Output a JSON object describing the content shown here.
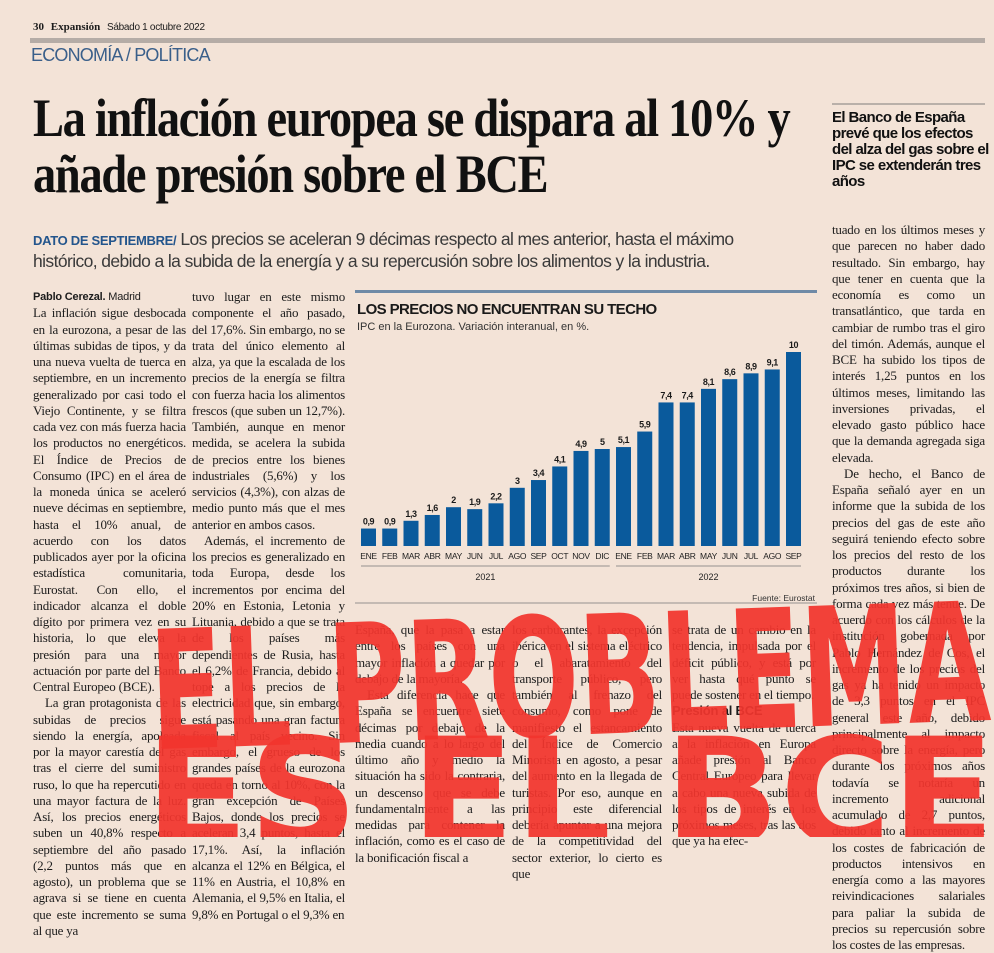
{
  "folio": {
    "page": "30",
    "brand": "Expansión",
    "date": "Sábado 1 octubre 2022"
  },
  "section": "ECONOMÍA / POLÍTICA",
  "headline": "La inflación europea se dispara al 10% y añade presión sobre el BCE",
  "side_summary": "El Banco de España prevé que los efectos del alza del gas sobre el IPC se extenderán tres años",
  "deck": {
    "label": "DATO DE SEPTIEMBRE/",
    "text": "Los precios se aceleran 9 décimas respecto al mes anterior, hasta el máximo histórico, debido a la subida de la energía y a su repercusión sobre los alimentos y la industria."
  },
  "byline": {
    "author": "Pablo Cerezal.",
    "place": "Madrid"
  },
  "columns": {
    "c1p1": "La inflación sigue desbocada en la eurozona, a pesar de las últimas subidas de tipos, y da una nueva vuelta de tuerca en septiembre, en un incremento generalizado por casi todo el Viejo Continente, y se filtra cada vez con más fuerza hacia los productos no energéticos. El Índice de Precios de Consumo (IPC) en el área de la moneda única se aceleró nueve décimas en septiembre, hasta el 10% anual, de acuerdo con los datos publicados ayer por la oficina estadística comunitaria, Eurostat. Con ello, el indicador alcanza el doble dígito por primera vez en su historia, lo que eleva la presión para una mayor actuación por parte del Banco Central Europeo (BCE).",
    "c1p2": "La gran protagonista de las subidas de precios sigue siendo la energía, apoleada por la mayor carestía del gas tras el cierre del suministro ruso, lo que ha repercutido en una mayor factura de la luz. Así, los precios energéticos suben un 40,8% respecto a septiembre del año pasado (2,2 puntos más que en agosto), un problema que se agrava si se tiene en cuenta que este incremento se suma al que ya",
    "c2p1": "tuvo lugar en este mismo componente el año pasado, del 17,6%. Sin embargo, no se trata del único elemento al alza, ya que la escalada de los precios de la energía se filtra con fuerza hacia los alimentos frescos (que suben un 12,7%). También, aunque en menor medida, se acelera la subida de precios entre los bienes industriales (5,6%) y los servicios (4,3%), con alzas de medio punto más que el mes anterior en ambos casos.",
    "c2p2": "Además, el incremento de los precios es generalizado en toda Europa, desde los incrementos por encima del 20% en Estonia, Letonia y Lituania, debido a que se trata de los países más dependientes de Rusia, hasta el 6,2% de Francia, debido al tope a los precios de la electricidad que, sin embargo, está pasando una gran factura fiscal al país vecino. Sin embargo, el grueso de los grandes países de la eurozona queda en torno al 10%, con la gran excepción de Países Bajos, donde los precios se aceleran 3,4 puntos, hasta el 17,1%. Así, la inflación alcanza el 12% en Bélgica, el 11% en Austria, el 10,8% en Alemania, el 9,5% en Italia, el 9,8% en Portugal o el 9,3% en",
    "c3p1": "España, que la pasa a estar entre los países con una mayor inflación a quedar por debajo de la mayoría.",
    "c3p2": "Esta diferencia hace que España se encuentre siete décimas por debajo de la media cuando a lo largo del último año y medio la situación ha sido la contraria, un descenso que se debe fundamentalmente a las medidas para contener la inflación, como es el caso de la bonificación fiscal a",
    "c4p1": "los carburantes, la excepción ibérica en el sistema eléctrico o el abaratamiento del transporte público, pero también al frenazo del consumo, como pone de manifiesto el estancamiento del Índice de Comercio Minorista en agosto, a pesar del aumento en la llegada de turistas. Por eso, aunque en principio este diferencial debería apuntar a una mejora de la competitividad del sector exterior, lo cierto es que",
    "c5p1": "se trata de un cambio en la tendencia, impulsada por el déficit público, y está por ver hasta qué punto se puede sostener en el tiempo.",
    "c5sub": "Presión al BCE",
    "c5p2": "Esta nueva vuelta de tuerca a la inflación en Europa añade presión al Banco Central Europeo para llevar a cabo una nueva subida de los tipos de interés en los próximos meses, tras las dos que ya ha efec-",
    "c6p1": "tuado en los últimos meses y que parecen no haber dado resultado. Sin embargo, hay que tener en cuenta que la economía es como un transatlántico, que tarda en cambiar de rumbo tras el giro del timón. Además, aunque el BCE ha subido los tipos de interés 1,25 puntos en los últimos meses, limitando las inversiones privadas, el elevado gasto público hace que la demanda agregada siga elevada.",
    "c6p2": "De hecho, el Banco de España señaló ayer en un informe que la subida de los precios del gas de este año seguirá teniendo efecto sobre los precios del resto de los productos durante los próximos tres años, si bien de forma cada vez más tenue. De acuerdo con los cálculos de la institución gobernada por Pablo Hernández de Cos, el incremento de los precios del gas ya ha tenido un impacto de 3,3 puntos en el IPC general este año, debido principalmente al impacto directo sobre la energía, pero durante los próximos años todavía se notaría un incremento adicional acumulado de 2,7 puntos, debido tanto al incremento de los costes de fabricación de productos intensivos en energía como a las mayores reivindicaciones salariales para paliar la subida de precios su repercusión sobre los costes de las empresas."
  },
  "graffiti": {
    "line1": "EL PROBLEMA",
    "line2": "ES EL BCE",
    "color": "#f2352e"
  },
  "colors": {
    "bar": "#0a5a9c",
    "section": "#3a5f8a",
    "background": "#f3e3d7"
  },
  "chart_data": {
    "type": "bar",
    "title": "LOS PRECIOS NO ENCUENTRAN SU TECHO",
    "subtitle": "IPC en la Eurozona. Variación interanual, en %.",
    "categories": [
      "ENE",
      "FEB",
      "MAR",
      "ABR",
      "MAY",
      "JUN",
      "JUL",
      "AGO",
      "SEP",
      "OCT",
      "NOV",
      "DIC",
      "ENE",
      "FEB",
      "MAR",
      "ABR",
      "MAY",
      "JUN",
      "JUL",
      "AGO",
      "SEP"
    ],
    "values": [
      0.9,
      0.9,
      1.3,
      1.6,
      2,
      1.9,
      2.2,
      3,
      3.4,
      4.1,
      4.9,
      5,
      5.1,
      5.9,
      7.4,
      7.4,
      8.1,
      8.6,
      8.9,
      9.1,
      10
    ],
    "value_labels": [
      "0,9",
      "0,9",
      "1,3",
      "1,6",
      "2",
      "1,9",
      "2,2",
      "3",
      "3,4",
      "4,1",
      "4,9",
      "5",
      "5,1",
      "5,9",
      "7,4",
      "7,4",
      "8,1",
      "8,6",
      "8,9",
      "9,1",
      "10"
    ],
    "groups": [
      {
        "label": "2021",
        "count": 12
      },
      {
        "label": "2022",
        "count": 9
      }
    ],
    "ylim": [
      0,
      10
    ],
    "source": "Fuente: Eurostat",
    "grid": false
  }
}
